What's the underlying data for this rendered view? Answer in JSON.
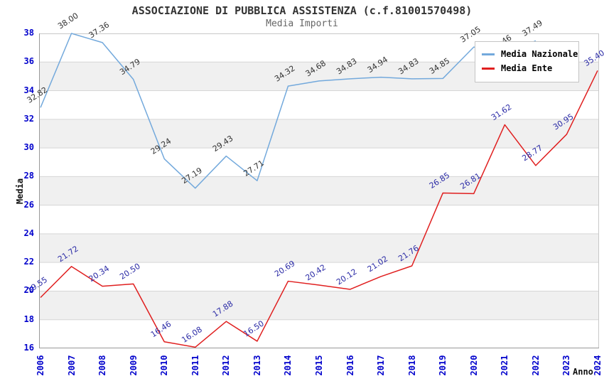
{
  "chart_data": {
    "type": "line",
    "title": "ASSOCIAZIONE DI PUBBLICA ASSISTENZA (c.f.81001570498)",
    "subtitle": "Media Importi",
    "xlabel": "Anno",
    "ylabel": "Media",
    "x": [
      2006,
      2007,
      2008,
      2009,
      2010,
      2011,
      2012,
      2013,
      2014,
      2015,
      2016,
      2017,
      2018,
      2019,
      2020,
      2021,
      2022,
      2023,
      2024
    ],
    "series": [
      {
        "name": "Media Nazionale",
        "color": "#73A9DC",
        "label_color": "#333333",
        "values": [
          32.82,
          38.0,
          37.36,
          34.79,
          29.24,
          27.19,
          29.43,
          27.71,
          34.32,
          34.68,
          34.83,
          34.94,
          34.83,
          34.85,
          37.05,
          36.46,
          37.49,
          null,
          null
        ]
      },
      {
        "name": "Media Ente",
        "color": "#E01F1F",
        "label_color": "#2B2BA6",
        "values": [
          19.55,
          21.72,
          20.34,
          20.5,
          16.46,
          16.08,
          17.88,
          16.5,
          20.69,
          20.42,
          20.12,
          21.02,
          21.76,
          26.85,
          26.81,
          31.62,
          28.77,
          30.95,
          35.4
        ]
      }
    ],
    "ylim": [
      16,
      38
    ],
    "ytick_step": 2,
    "grid": true,
    "band_colors": [
      "#ffffff",
      "#f0f0f0"
    ],
    "grid_color": "#d6d6d6",
    "border_color": "#c9c9c9",
    "axis_color": "#999999",
    "tick_color": "#0000CC",
    "legend_position": "top-right"
  },
  "legend": {
    "items": [
      {
        "label": "Media Nazionale",
        "color": "#73A9DC"
      },
      {
        "label": "Media Ente",
        "color": "#E01F1F"
      }
    ]
  }
}
